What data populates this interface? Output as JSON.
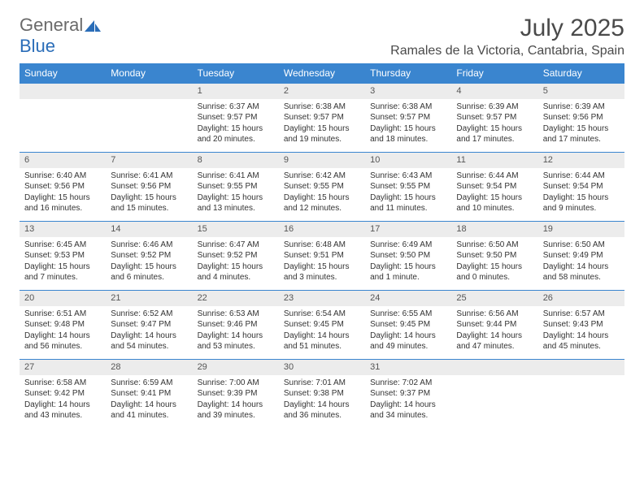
{
  "brand": {
    "text_part1": "General",
    "text_part2": "Blue",
    "color_general": "#6a6a6a",
    "color_blue": "#2a6db8",
    "icon_fill": "#2a6db8"
  },
  "header": {
    "month_title": "July 2025",
    "location": "Ramales de la Victoria, Cantabria, Spain"
  },
  "theme": {
    "header_bg": "#3a85cf",
    "header_text": "#ffffff",
    "cell_border": "#3a85cf",
    "daynum_bg": "#ececec",
    "body_bg": "#ffffff"
  },
  "calendar": {
    "type": "table",
    "day_headers": [
      "Sunday",
      "Monday",
      "Tuesday",
      "Wednesday",
      "Thursday",
      "Friday",
      "Saturday"
    ],
    "weeks": [
      [
        null,
        null,
        {
          "n": "1",
          "sr": "Sunrise: 6:37 AM",
          "ss": "Sunset: 9:57 PM",
          "dl": "Daylight: 15 hours and 20 minutes."
        },
        {
          "n": "2",
          "sr": "Sunrise: 6:38 AM",
          "ss": "Sunset: 9:57 PM",
          "dl": "Daylight: 15 hours and 19 minutes."
        },
        {
          "n": "3",
          "sr": "Sunrise: 6:38 AM",
          "ss": "Sunset: 9:57 PM",
          "dl": "Daylight: 15 hours and 18 minutes."
        },
        {
          "n": "4",
          "sr": "Sunrise: 6:39 AM",
          "ss": "Sunset: 9:57 PM",
          "dl": "Daylight: 15 hours and 17 minutes."
        },
        {
          "n": "5",
          "sr": "Sunrise: 6:39 AM",
          "ss": "Sunset: 9:56 PM",
          "dl": "Daylight: 15 hours and 17 minutes."
        }
      ],
      [
        {
          "n": "6",
          "sr": "Sunrise: 6:40 AM",
          "ss": "Sunset: 9:56 PM",
          "dl": "Daylight: 15 hours and 16 minutes."
        },
        {
          "n": "7",
          "sr": "Sunrise: 6:41 AM",
          "ss": "Sunset: 9:56 PM",
          "dl": "Daylight: 15 hours and 15 minutes."
        },
        {
          "n": "8",
          "sr": "Sunrise: 6:41 AM",
          "ss": "Sunset: 9:55 PM",
          "dl": "Daylight: 15 hours and 13 minutes."
        },
        {
          "n": "9",
          "sr": "Sunrise: 6:42 AM",
          "ss": "Sunset: 9:55 PM",
          "dl": "Daylight: 15 hours and 12 minutes."
        },
        {
          "n": "10",
          "sr": "Sunrise: 6:43 AM",
          "ss": "Sunset: 9:55 PM",
          "dl": "Daylight: 15 hours and 11 minutes."
        },
        {
          "n": "11",
          "sr": "Sunrise: 6:44 AM",
          "ss": "Sunset: 9:54 PM",
          "dl": "Daylight: 15 hours and 10 minutes."
        },
        {
          "n": "12",
          "sr": "Sunrise: 6:44 AM",
          "ss": "Sunset: 9:54 PM",
          "dl": "Daylight: 15 hours and 9 minutes."
        }
      ],
      [
        {
          "n": "13",
          "sr": "Sunrise: 6:45 AM",
          "ss": "Sunset: 9:53 PM",
          "dl": "Daylight: 15 hours and 7 minutes."
        },
        {
          "n": "14",
          "sr": "Sunrise: 6:46 AM",
          "ss": "Sunset: 9:52 PM",
          "dl": "Daylight: 15 hours and 6 minutes."
        },
        {
          "n": "15",
          "sr": "Sunrise: 6:47 AM",
          "ss": "Sunset: 9:52 PM",
          "dl": "Daylight: 15 hours and 4 minutes."
        },
        {
          "n": "16",
          "sr": "Sunrise: 6:48 AM",
          "ss": "Sunset: 9:51 PM",
          "dl": "Daylight: 15 hours and 3 minutes."
        },
        {
          "n": "17",
          "sr": "Sunrise: 6:49 AM",
          "ss": "Sunset: 9:50 PM",
          "dl": "Daylight: 15 hours and 1 minute."
        },
        {
          "n": "18",
          "sr": "Sunrise: 6:50 AM",
          "ss": "Sunset: 9:50 PM",
          "dl": "Daylight: 15 hours and 0 minutes."
        },
        {
          "n": "19",
          "sr": "Sunrise: 6:50 AM",
          "ss": "Sunset: 9:49 PM",
          "dl": "Daylight: 14 hours and 58 minutes."
        }
      ],
      [
        {
          "n": "20",
          "sr": "Sunrise: 6:51 AM",
          "ss": "Sunset: 9:48 PM",
          "dl": "Daylight: 14 hours and 56 minutes."
        },
        {
          "n": "21",
          "sr": "Sunrise: 6:52 AM",
          "ss": "Sunset: 9:47 PM",
          "dl": "Daylight: 14 hours and 54 minutes."
        },
        {
          "n": "22",
          "sr": "Sunrise: 6:53 AM",
          "ss": "Sunset: 9:46 PM",
          "dl": "Daylight: 14 hours and 53 minutes."
        },
        {
          "n": "23",
          "sr": "Sunrise: 6:54 AM",
          "ss": "Sunset: 9:45 PM",
          "dl": "Daylight: 14 hours and 51 minutes."
        },
        {
          "n": "24",
          "sr": "Sunrise: 6:55 AM",
          "ss": "Sunset: 9:45 PM",
          "dl": "Daylight: 14 hours and 49 minutes."
        },
        {
          "n": "25",
          "sr": "Sunrise: 6:56 AM",
          "ss": "Sunset: 9:44 PM",
          "dl": "Daylight: 14 hours and 47 minutes."
        },
        {
          "n": "26",
          "sr": "Sunrise: 6:57 AM",
          "ss": "Sunset: 9:43 PM",
          "dl": "Daylight: 14 hours and 45 minutes."
        }
      ],
      [
        {
          "n": "27",
          "sr": "Sunrise: 6:58 AM",
          "ss": "Sunset: 9:42 PM",
          "dl": "Daylight: 14 hours and 43 minutes."
        },
        {
          "n": "28",
          "sr": "Sunrise: 6:59 AM",
          "ss": "Sunset: 9:41 PM",
          "dl": "Daylight: 14 hours and 41 minutes."
        },
        {
          "n": "29",
          "sr": "Sunrise: 7:00 AM",
          "ss": "Sunset: 9:39 PM",
          "dl": "Daylight: 14 hours and 39 minutes."
        },
        {
          "n": "30",
          "sr": "Sunrise: 7:01 AM",
          "ss": "Sunset: 9:38 PM",
          "dl": "Daylight: 14 hours and 36 minutes."
        },
        {
          "n": "31",
          "sr": "Sunrise: 7:02 AM",
          "ss": "Sunset: 9:37 PM",
          "dl": "Daylight: 14 hours and 34 minutes."
        },
        null,
        null
      ]
    ]
  }
}
